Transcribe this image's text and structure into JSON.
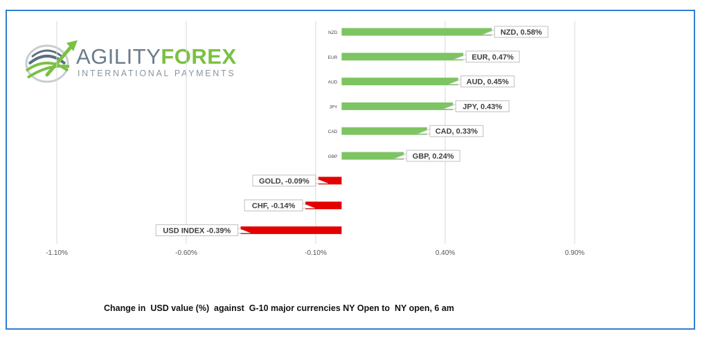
{
  "logo": {
    "part1": "AGILITY",
    "part2": "FOREX",
    "subtitle": "INTERNATIONAL PAYMENTS"
  },
  "caption": "Change in  USD value (%)  against  G-10 major currencies NY Open to  NY open, 6 am",
  "chart_data": {
    "type": "bar",
    "orientation": "horizontal",
    "categories": [
      "NZD",
      "EUR",
      "AUD",
      "JPY",
      "CAD",
      "GBP",
      "",
      "",
      ""
    ],
    "values": [
      0.58,
      0.47,
      0.45,
      0.43,
      0.33,
      0.24,
      -0.09,
      -0.14,
      -0.39
    ],
    "data_labels": [
      "NZD, 0.58%",
      "EUR, 0.47%",
      "AUD, 0.45%",
      "JPY, 0.43%",
      "CAD, 0.33%",
      "GBP, 0.24%",
      "GOLD, -0.09%",
      "CHF, -0.14%",
      "USD INDEX -0.39%"
    ],
    "xticks": [
      "-1.10%",
      "-0.60%",
      "-0.10%",
      "0.40%",
      "0.90%"
    ],
    "xtick_values": [
      -1.1,
      -0.6,
      -0.1,
      0.4,
      0.9
    ],
    "xlim": [
      -1.1,
      0.9
    ],
    "grid": "vertical",
    "colors": {
      "positive": "#7dc462",
      "negative": "#e50000",
      "grid": "#d9d9d9",
      "label_border": "#bfbfbf"
    }
  }
}
